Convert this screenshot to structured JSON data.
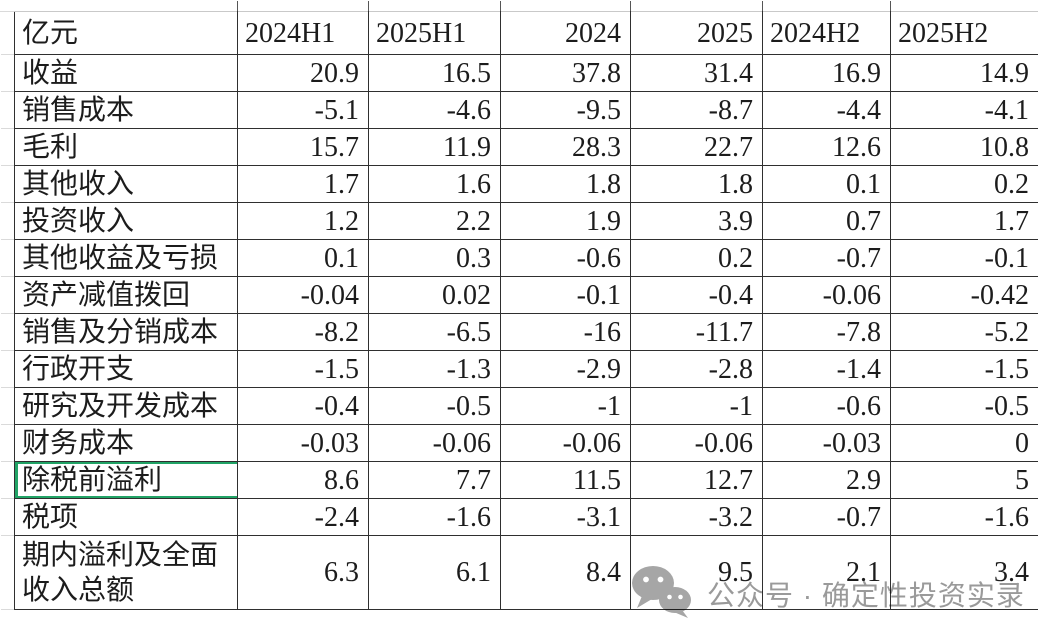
{
  "chart_data": {
    "type": "table",
    "unit_header": "亿元",
    "columns": [
      {
        "label": "2024H1",
        "align": "left"
      },
      {
        "label": "2025H1",
        "align": "left"
      },
      {
        "label": "2024",
        "align": "right"
      },
      {
        "label": "2025",
        "align": "right"
      },
      {
        "label": "2024H2",
        "align": "left"
      },
      {
        "label": "2025H2",
        "align": "left"
      }
    ],
    "rows": [
      {
        "label": "收益",
        "values": [
          20.9,
          16.5,
          37.8,
          31.4,
          16.9,
          14.9
        ]
      },
      {
        "label": "销售成本",
        "values": [
          -5.1,
          -4.6,
          -9.5,
          -8.7,
          -4.4,
          -4.1
        ]
      },
      {
        "label": "毛利",
        "values": [
          15.7,
          11.9,
          28.3,
          22.7,
          12.6,
          10.8
        ]
      },
      {
        "label": "其他收入",
        "values": [
          1.7,
          1.6,
          1.8,
          1.8,
          0.1,
          0.2
        ]
      },
      {
        "label": "投资收入",
        "values": [
          1.2,
          2.2,
          1.9,
          3.9,
          0.7,
          1.7
        ]
      },
      {
        "label": "其他收益及亏损",
        "values": [
          0.1,
          0.3,
          -0.6,
          0.2,
          -0.7,
          -0.1
        ]
      },
      {
        "label": "资产减值拨回",
        "values": [
          -0.04,
          0.02,
          -0.1,
          -0.4,
          -0.06,
          -0.42
        ]
      },
      {
        "label": "销售及分销成本",
        "values": [
          -8.2,
          -6.5,
          -16,
          -11.7,
          -7.8,
          -5.2
        ]
      },
      {
        "label": "行政开支",
        "values": [
          -1.5,
          -1.3,
          -2.9,
          -2.8,
          -1.4,
          -1.5
        ]
      },
      {
        "label": "研究及开发成本",
        "values": [
          -0.4,
          -0.5,
          -1,
          -1,
          -0.6,
          -0.5
        ]
      },
      {
        "label": "财务成本",
        "values": [
          -0.03,
          -0.06,
          -0.06,
          -0.06,
          -0.03,
          0
        ]
      },
      {
        "label": "除税前溢利",
        "values": [
          8.6,
          7.7,
          11.5,
          12.7,
          2.9,
          5
        ],
        "selected": true
      },
      {
        "label": "税项",
        "values": [
          -2.4,
          -1.6,
          -3.1,
          -3.2,
          -0.7,
          -1.6
        ]
      },
      {
        "label": "期内溢利及全面收入总额",
        "values": [
          6.3,
          6.1,
          8.4,
          9.5,
          2.1,
          3.4
        ]
      }
    ]
  },
  "watermark": {
    "icon": "wechat-icon",
    "text": "公众号 · 确定性投资实录"
  },
  "colors": {
    "selection_green": "#21a366",
    "cell_border": "#2f2f2f",
    "gridline_gray": "#dadada",
    "watermark_gray": "#9a9a9a"
  }
}
